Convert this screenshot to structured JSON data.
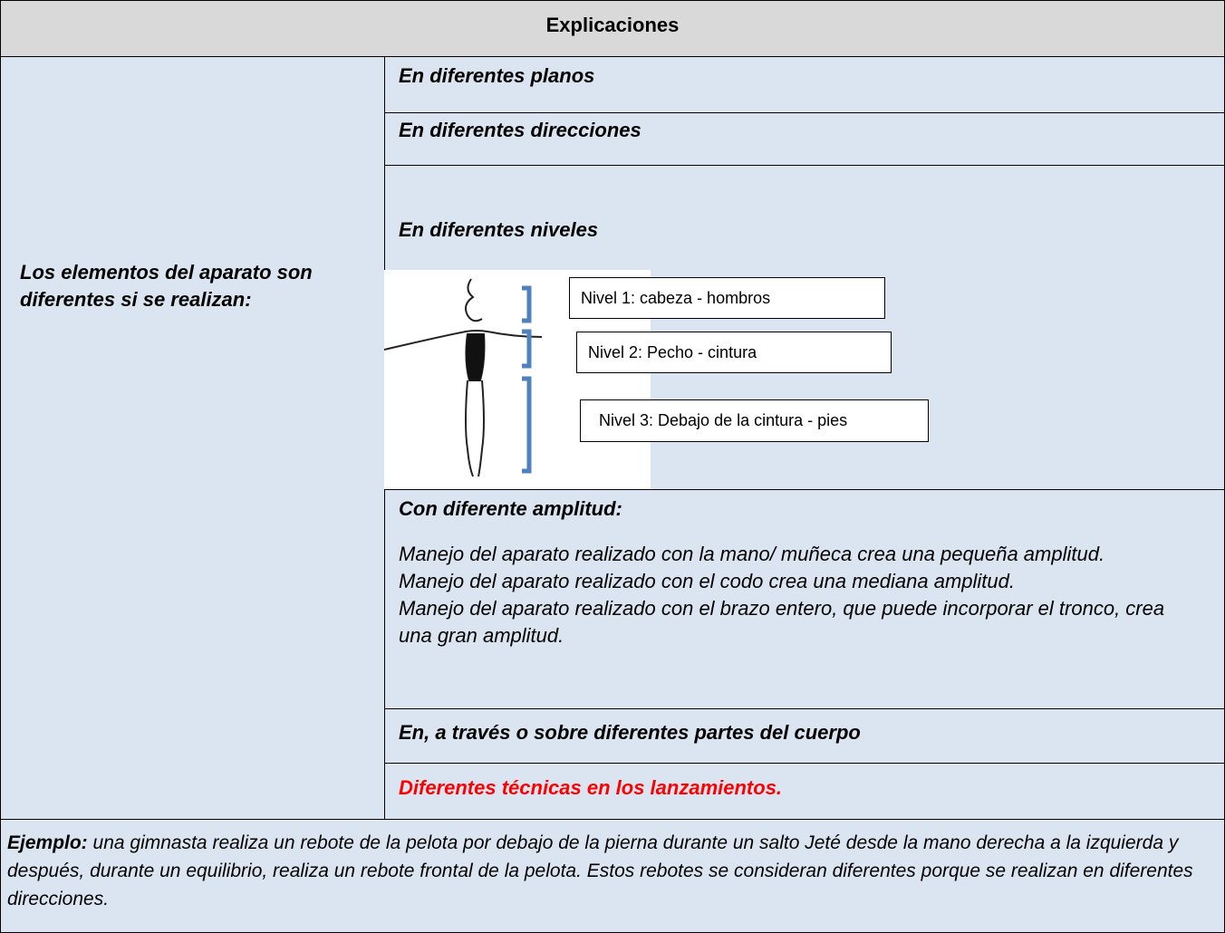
{
  "header": {
    "title": "Explicaciones"
  },
  "left_label": "Los elementos del aparato son diferentes si se realizan:",
  "rows": [
    {
      "title": "En diferentes planos"
    },
    {
      "title": "En diferentes direcciones"
    },
    {
      "title": "En diferentes niveles"
    },
    {
      "title": "Con diferente amplitud:"
    },
    {
      "title": "En, a través o sobre diferentes partes del cuerpo"
    },
    {
      "title": "Diferentes técnicas en los lanzamientos."
    }
  ],
  "levels": [
    "Nivel 1: cabeza - hombros",
    "Nivel 2: Pecho - cintura",
    "Nivel 3: Debajo de la cintura - pies"
  ],
  "amplitude_lines": [
    "Manejo del aparato realizado con la mano/ muñeca crea una pequeña amplitud.",
    "Manejo del aparato realizado con el codo crea una mediana amplitud.",
    "Manejo del aparato realizado con el brazo entero, que puede incorporar el tronco, crea una gran amplitud."
  ],
  "example": {
    "lead": "Ejemplo:",
    "text": "una gimnasta realiza un rebote de la pelota por debajo de la pierna durante un salto Jeté desde la mano derecha a la izquierda y después, durante un equilibrio, realiza un rebote frontal de la pelota. Estos rebotes se consideran diferentes porque se realizan en diferentes direcciones."
  }
}
